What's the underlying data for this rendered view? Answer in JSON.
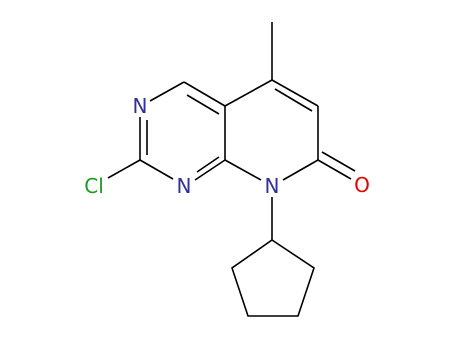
{
  "atoms": [
    {
      "label": "N"
    },
    {
      "label": "N"
    },
    {
      "label": "N"
    },
    {
      "label": "Cl"
    },
    {
      "label": "O"
    }
  ]
}
